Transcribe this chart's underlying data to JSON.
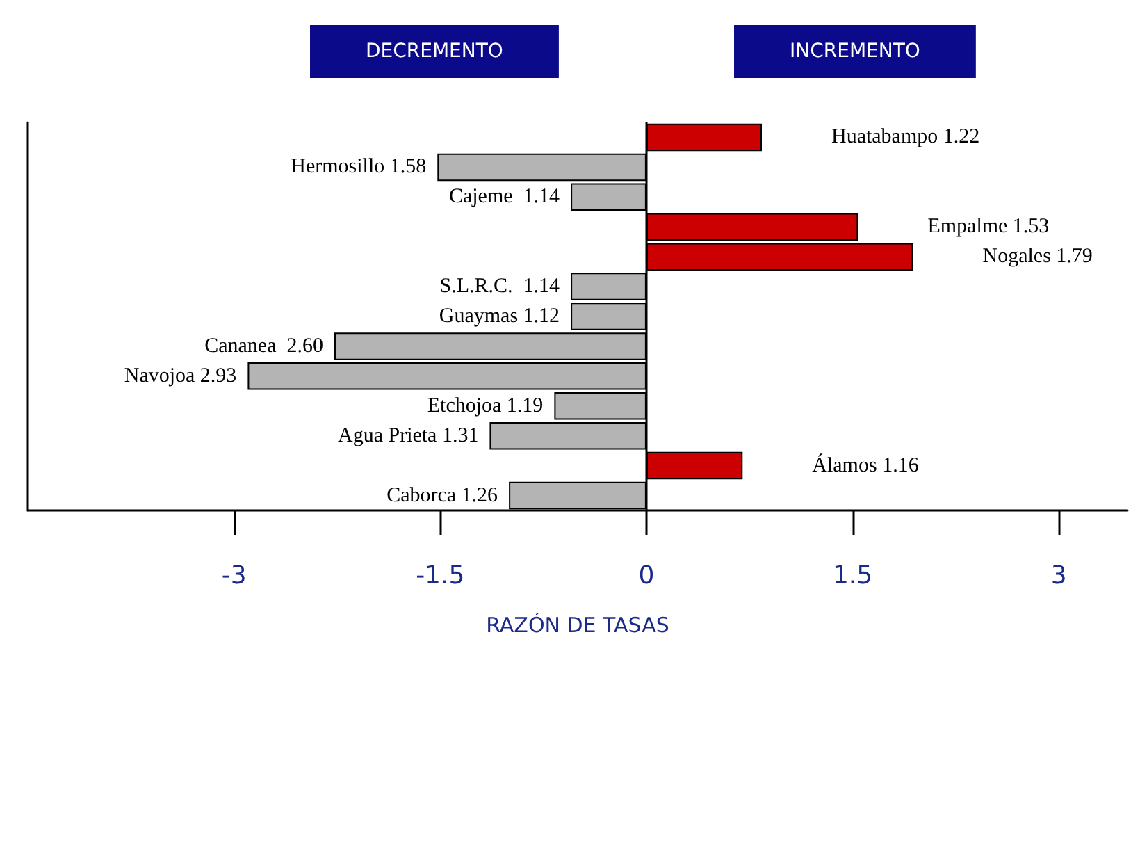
{
  "chart_data": {
    "type": "bar",
    "orientation": "horizontal",
    "xlabel": "RAZÓN DE TASAS",
    "annotations": [
      "DECREMENTO",
      "INCREMENTO"
    ],
    "categories": [
      "Huatabampo 1.22",
      "Hermosillo 1.58",
      "Cajeme  1.14",
      "Empalme 1.53",
      "Nogales 1.79",
      "S.L.R.C.  1.14",
      "Guaymas 1.12",
      "Cananea  2.60",
      "Navojoa 2.93",
      "Etchojoa 1.19",
      "Agua Prieta 1.31",
      "Álamos 1.16",
      "Caborca 1.26"
    ],
    "values": [
      0.84,
      -1.52,
      -0.55,
      1.54,
      1.94,
      -0.55,
      -0.55,
      -2.27,
      -2.9,
      -0.67,
      -1.14,
      0.7,
      -1.0
    ],
    "colors": [
      "#cc0000",
      "#b4b4b4",
      "#b4b4b4",
      "#cc0000",
      "#cc0000",
      "#b4b4b4",
      "#b4b4b4",
      "#b4b4b4",
      "#b4b4b4",
      "#b4b4b4",
      "#b4b4b4",
      "#cc0000",
      "#b4b4b4"
    ],
    "xlim": [
      -4.5,
      3.5
    ],
    "xticks": [
      -3,
      -1.5,
      0,
      1.5,
      3
    ],
    "ref_lines": [
      {
        "axis": "x",
        "value": 0,
        "color": "#000000"
      }
    ],
    "tick_labels": "x",
    "grid": false
  }
}
